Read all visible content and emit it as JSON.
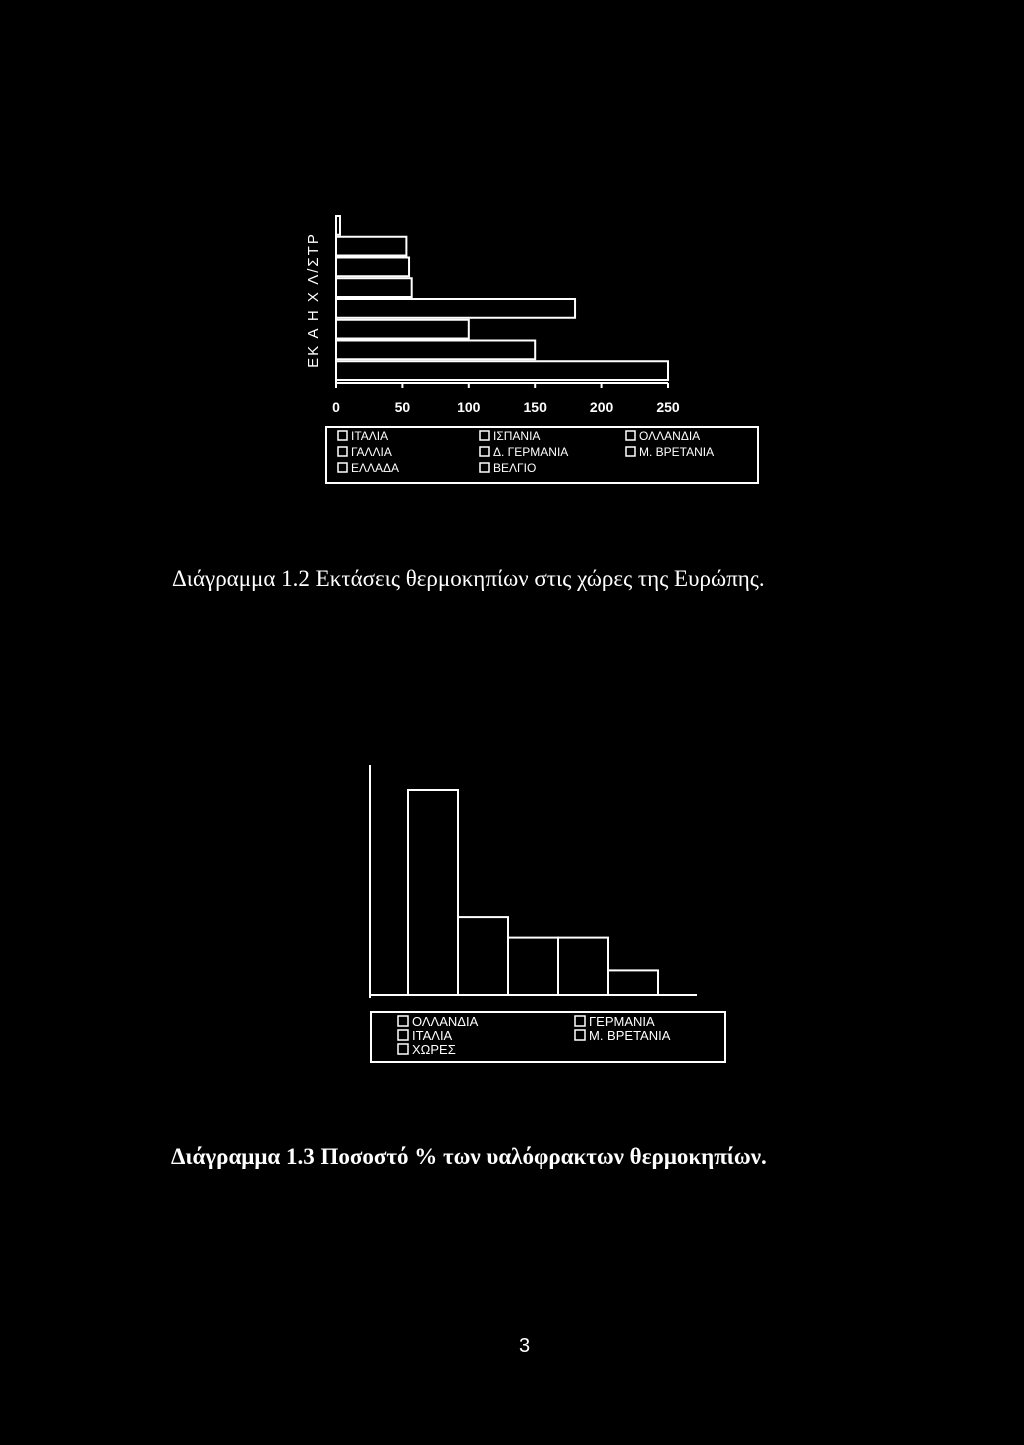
{
  "chart_data": [
    {
      "type": "bar",
      "orientation": "horizontal",
      "ylabel": "ΕΚ Α Η Χ Λ/ΣΤΡ",
      "x_ticks": [
        "0",
        "50",
        "100",
        "150",
        "200",
        "250"
      ],
      "xlim": [
        0,
        250
      ],
      "categories": [
        "ΕΛΛΑΔΑ",
        "ΓΑΛΛΙΑ",
        "ΙΤΑΛΙΑ",
        "ΙΣΠΑΝΙΑ",
        "Δ. ΓΕΡΜΑΝΙΑ",
        "ΒΕΛΓΙΟ",
        "ΟΛΛΑΝΔΙΑ",
        "Μ. ΒΡΕΤΑΝΙΑ"
      ],
      "values": [
        3,
        53,
        55,
        57,
        180,
        100,
        150,
        250
      ],
      "legend": {
        "position": "bottom",
        "entries": [
          "ΙΤΑΛΙΑ",
          "ΙΣΠΑΝΙΑ",
          "ΟΛΛΑΝΔΙΑ",
          "ΓΑΛΛΙΑ",
          "Δ. ΓΕΡΜΑΝΙΑ",
          "Μ. ΒΡΕΤΑΝΙΑ",
          "ΕΛΛΑΔΑ",
          "ΒΕΛΓΙΟ"
        ]
      },
      "grid": false
    },
    {
      "type": "bar",
      "orientation": "vertical",
      "categories": [
        "ΟΛΛΑΝΔΙΑ",
        "ΓΕΡΜΑΝΙΑ",
        "ΙΤΑΛΙΑ",
        "Μ. ΒΡΕΤΑΝΙΑ",
        "ΧΩΡΕΣ"
      ],
      "values": [
        100,
        38,
        28,
        28,
        12
      ],
      "legend": {
        "position": "bottom",
        "entries": [
          "ΟΛΛΑΝΔΙΑ",
          "ΓΕΡΜΑΝΙΑ",
          "ΙΤΑΛΙΑ",
          "Μ. ΒΡΕΤΑΝΙΑ",
          "ΧΩΡΕΣ"
        ]
      },
      "grid": false
    }
  ],
  "captions": {
    "figure_1_2": "Διάγραμμα 1.2 Εκτάσεις θερμοκηπίων στις χώρες της Ευρώπης.",
    "figure_1_3": "Διάγραμμα 1.3 Ποσοστό % των υαλόφρακτων θερμοκηπίων."
  },
  "page_number": "3"
}
